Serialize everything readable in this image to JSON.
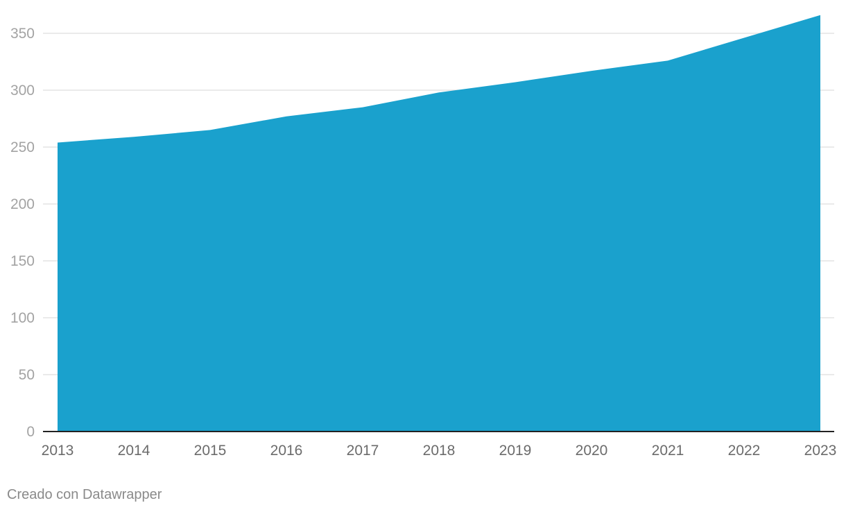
{
  "chart_data": {
    "type": "area",
    "x": [
      "2013",
      "2014",
      "2015",
      "2016",
      "2017",
      "2018",
      "2019",
      "2020",
      "2021",
      "2022",
      "2023"
    ],
    "series": [
      {
        "values": [
          254,
          259,
          265,
          277,
          285,
          298,
          307,
          317,
          326,
          346,
          366
        ]
      }
    ],
    "yticks": [
      0,
      50,
      100,
      150,
      200,
      250,
      300,
      350
    ],
    "ylim": [
      0,
      366
    ],
    "grid": true,
    "colors": {
      "area": "#1aa1cd",
      "grid": "#e3e3e3",
      "baseline": "#222222",
      "ytick_text": "#a3a3a3",
      "xtick_text": "#6b6b6b"
    }
  },
  "footer": {
    "credit": "Creado con Datawrapper"
  }
}
